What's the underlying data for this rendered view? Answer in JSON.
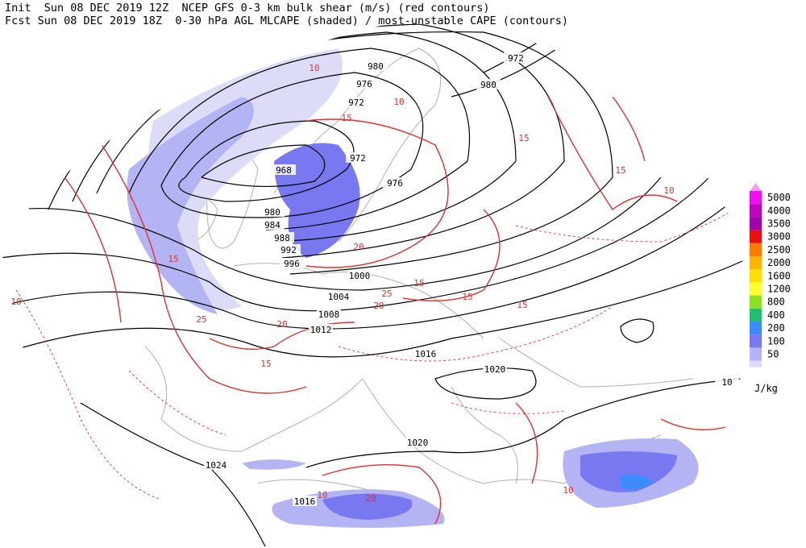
{
  "header": {
    "line1": "Init  Sun 08 DEC 2019 12Z  NCEP GFS 0-3 km bulk shear (m/s) (red contours)",
    "line2": "Fcst Sun 08 DEC 2019 18Z  0-30 hPa AGL MLCAPE (shaded) / most-unstable CAPE (contours)"
  },
  "legend": {
    "unit": "J/kg",
    "items": [
      {
        "label": "5000",
        "color": "#ee10ee"
      },
      {
        "label": "4000",
        "color": "#c000c0"
      },
      {
        "label": "3500",
        "color": "#a000b0"
      },
      {
        "label": "3000",
        "color": "#e81010"
      },
      {
        "label": "2500",
        "color": "#ff7a00"
      },
      {
        "label": "2000",
        "color": "#ffb400"
      },
      {
        "label": "1600",
        "color": "#ffe000"
      },
      {
        "label": "1200",
        "color": "#ffff30"
      },
      {
        "label": "800",
        "color": "#90e020"
      },
      {
        "label": "400",
        "color": "#20c070"
      },
      {
        "label": "200",
        "color": "#3c8cff"
      },
      {
        "label": "100",
        "color": "#7878f0"
      },
      {
        "label": "50",
        "color": "#b4b4f4"
      }
    ],
    "lowest_color": "#dcdcf8",
    "top_color": "#f0a0f0"
  },
  "isobar_labels": [
    "980",
    "976",
    "972",
    "968",
    "972",
    "976",
    "980",
    "984",
    "988",
    "992",
    "996",
    "1000",
    "1004",
    "1008",
    "1012",
    "1016",
    "1020",
    "1020",
    "1024",
    "1016",
    "972",
    "980",
    "10"
  ],
  "shear_labels": [
    "10",
    "15",
    "20",
    "25",
    "15",
    "10",
    "15",
    "20",
    "15",
    "10",
    "15",
    "25",
    "20",
    "10",
    "15",
    "10",
    "15",
    "20",
    "10",
    "15"
  ]
}
